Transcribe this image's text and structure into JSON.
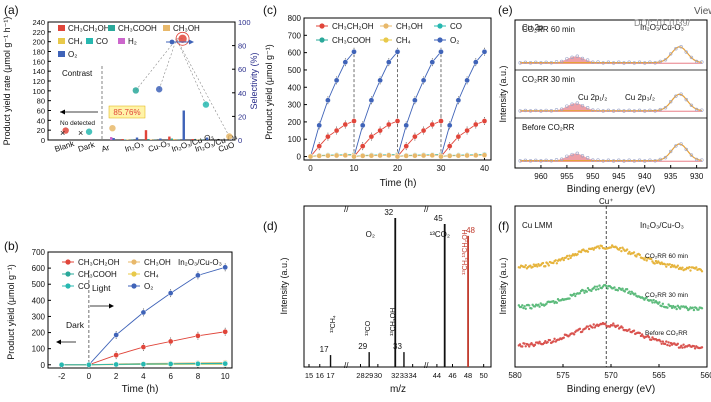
{
  "figure": {
    "colors": {
      "ch3ch2oh": "#e0453a",
      "ch3cooh": "#2aa89a",
      "ch3oh": "#e8b86a",
      "ch4": "#e8c94a",
      "co": "#27b8b0",
      "h2": "#cc66cc",
      "o2": "#3f63b8",
      "ms_black": "#111111",
      "ms_red": "#c0392b",
      "xps_raw": "#9aa3c8",
      "xps_fit_orange": "#e8a23a",
      "xps_fit_red": "#e8808a",
      "auger_orange": "#e6b43c",
      "auger_green": "#5dbb7c",
      "auger_red": "#d9534f"
    },
    "corner_text": {
      "line1": "View",
      "line2": "DOI: 10.1039/"
    }
  },
  "chart_data": [
    {
      "panel": "(a)",
      "type": "bar",
      "ylabel": "Product yield rate (μmol g⁻¹ h⁻¹)",
      "y2label": "Selectivity (%)",
      "ylim": [
        0,
        240
      ],
      "yticks": [
        0,
        20,
        40,
        60,
        80,
        100,
        120,
        140,
        160,
        180,
        200,
        220,
        240
      ],
      "y2lim": [
        0,
        100
      ],
      "y2ticks": [
        0,
        20,
        40,
        60,
        80,
        100
      ],
      "categories": [
        "Blank",
        "Dark",
        "Ar",
        "In₂O₃",
        "Cu-O₃",
        "In₂O₃/Cu-O₃",
        "In₂O₃/Cu-O₄",
        "CuO"
      ],
      "legend": [
        "CH₃CH₂OH",
        "CH₃COOH",
        "CH₃OH",
        "CH₄",
        "CO",
        "H₂",
        "O₂"
      ],
      "series": [
        {
          "name": "CH3CH2OH",
          "values": [
            0,
            0,
            0,
            2,
            20,
            7,
            2,
            0
          ]
        },
        {
          "name": "CH3COOH",
          "values": [
            0,
            0,
            0,
            1,
            2,
            3,
            1,
            0
          ]
        },
        {
          "name": "CH3OH",
          "values": [
            0,
            0,
            0,
            1,
            1,
            2,
            1,
            0
          ]
        },
        {
          "name": "CH4",
          "values": [
            0,
            0,
            0,
            0.5,
            0.5,
            0.5,
            0.5,
            0
          ]
        },
        {
          "name": "CO",
          "values": [
            0,
            0,
            0,
            0.5,
            0.5,
            0.5,
            0.5,
            0
          ]
        },
        {
          "name": "H2",
          "values": [
            0,
            0,
            6,
            0,
            0,
            0,
            0,
            0
          ]
        },
        {
          "name": "O2",
          "values": [
            0,
            0,
            4,
            5,
            3,
            60,
            5,
            1
          ]
        }
      ],
      "selectivity_points": [
        8,
        7,
        10,
        42,
        43,
        85.76,
        30,
        3
      ],
      "annotations": {
        "contrast": "Contrast",
        "no_detected": "No detected",
        "cross": "×",
        "selectivity_label": "85.76%"
      }
    },
    {
      "panel": "(b)",
      "type": "line",
      "xlabel": "Time (h)",
      "ylabel": "Product yield (μmol g⁻¹)",
      "xlim": [
        -3,
        10.5
      ],
      "xticks": [
        -2,
        0,
        2,
        4,
        6,
        8,
        10
      ],
      "ylim": [
        -20,
        700
      ],
      "yticks": [
        0,
        100,
        200,
        300,
        400,
        500,
        600,
        700
      ],
      "legend": [
        "CH₃CH₂OH",
        "CH₃OH",
        "CH₃COOH",
        "CH₄",
        "CO",
        "O₂"
      ],
      "sample_label": "In₂O₃/Cu-O₃",
      "dark_label": "Dark",
      "light_label": "Light",
      "x": [
        -2,
        0,
        2,
        4,
        6,
        8,
        10
      ],
      "series": [
        {
          "name": "CH3CH2OH",
          "values": [
            0,
            0,
            60,
            110,
            145,
            180,
            205
          ]
        },
        {
          "name": "O2",
          "values": [
            0,
            0,
            185,
            325,
            445,
            555,
            605
          ]
        },
        {
          "name": "CH3OH",
          "values": [
            0,
            0,
            5,
            8,
            10,
            12,
            14
          ]
        },
        {
          "name": "CH3COOH",
          "values": [
            0,
            0,
            3,
            5,
            6,
            8,
            9
          ]
        },
        {
          "name": "CH4",
          "values": [
            0,
            0,
            1,
            2,
            2,
            3,
            3
          ]
        },
        {
          "name": "CO",
          "values": [
            0,
            0,
            2,
            4,
            5,
            6,
            7
          ]
        }
      ]
    },
    {
      "panel": "(c)",
      "type": "line",
      "xlabel": "Time (h)",
      "ylabel": "Product yield (μmol g⁻¹)",
      "xlim": [
        -1.5,
        41.5
      ],
      "xticks": [
        0,
        10,
        20,
        30,
        40
      ],
      "ylim": [
        -20,
        800
      ],
      "yticks": [
        0,
        100,
        200,
        300,
        400,
        500,
        600,
        700,
        800
      ],
      "legend": [
        "CH₃CH₂OH",
        "CH₃OH",
        "CO",
        "CH₃COOH",
        "CH₄",
        "O₂"
      ],
      "cycles": [
        [
          0,
          10
        ],
        [
          10,
          20
        ],
        [
          20,
          30
        ],
        [
          30,
          40
        ]
      ],
      "cycle_offsets_h": [
        0,
        2,
        4,
        6,
        8,
        10
      ],
      "series": [
        {
          "name": "CH3CH2OH",
          "cycle_values": [
            0,
            60,
            115,
            150,
            185,
            205
          ]
        },
        {
          "name": "O2",
          "cycle_values": [
            0,
            180,
            325,
            440,
            545,
            605
          ]
        },
        {
          "name": "CO",
          "cycle_values": [
            0,
            6,
            8,
            9,
            10,
            12
          ]
        },
        {
          "name": "CH3OH",
          "cycle_values": [
            0,
            4,
            5,
            6,
            7,
            8
          ]
        }
      ]
    },
    {
      "panel": "(d)",
      "type": "bar",
      "xlabel": "m/z",
      "ylabel": "Intensity (a.u.)",
      "xticks": [
        15,
        16,
        17,
        28,
        29,
        30,
        32,
        33,
        34,
        44,
        46,
        48,
        50
      ],
      "peaks": [
        {
          "mz": 17,
          "intensity": 0.08,
          "label": "17",
          "species": "¹³CH₄",
          "color": "ms_black"
        },
        {
          "mz": 29,
          "intensity": 0.1,
          "label": "29",
          "species": "¹³CO",
          "color": "ms_black"
        },
        {
          "mz": 32,
          "intensity": 1.0,
          "label": "32",
          "species": "O₂",
          "color": "ms_black"
        },
        {
          "mz": 33,
          "intensity": 0.1,
          "label": "33",
          "species": "¹³CH₃OH",
          "color": "ms_black"
        },
        {
          "mz": 45,
          "intensity": 0.96,
          "label": "45",
          "species": "¹³CO₂",
          "color": "ms_black"
        },
        {
          "mz": 48,
          "intensity": 0.88,
          "label": "48",
          "species": "¹³CH₃¹³CH₂OH",
          "color": "ms_red"
        }
      ]
    },
    {
      "panel": "(e)",
      "type": "line",
      "xlabel": "Binding energy (eV)",
      "ylabel": "Intensity (a.u.)",
      "xlim": [
        965,
        928
      ],
      "xticks": [
        960,
        955,
        950,
        945,
        940,
        935,
        930
      ],
      "title": "Cu 2p",
      "sample_label": "In₂O₃/Cu-O₃",
      "peak_labels": {
        "p12": "Cu 2p₁/₂",
        "p32": "Cu 2p₃/₂"
      },
      "traces": [
        {
          "label": "CO₂RR 60 min",
          "peaks": [
            {
              "center": 953.3,
              "height": 0.35
            },
            {
              "center": 933.3,
              "height": 0.9
            }
          ]
        },
        {
          "label": "CO₂RR 30 min",
          "peaks": [
            {
              "center": 953.3,
              "height": 0.45
            },
            {
              "center": 933.3,
              "height": 1.0
            }
          ]
        },
        {
          "label": "Before CO₂RR",
          "peaks": [
            {
              "center": 953.3,
              "height": 0.4
            },
            {
              "center": 933.3,
              "height": 0.95
            }
          ]
        }
      ]
    },
    {
      "panel": "(f)",
      "type": "line",
      "xlabel": "Binding energy (eV)",
      "ylabel": "Intensity (a.u.)",
      "xlim": [
        580,
        560
      ],
      "xticks": [
        580,
        575,
        570,
        565,
        560
      ],
      "title": "Cu LMM",
      "sample_label": "In₂O₃/Cu-O₃",
      "marker_label": "Cu⁺",
      "marker_x": 570.5,
      "traces": [
        {
          "label": "CO₂RR 60 min",
          "color": "auger_orange"
        },
        {
          "label": "CO₂RR 30 min",
          "color": "auger_green"
        },
        {
          "label": "Before CO₂RR",
          "color": "auger_red"
        }
      ]
    }
  ]
}
